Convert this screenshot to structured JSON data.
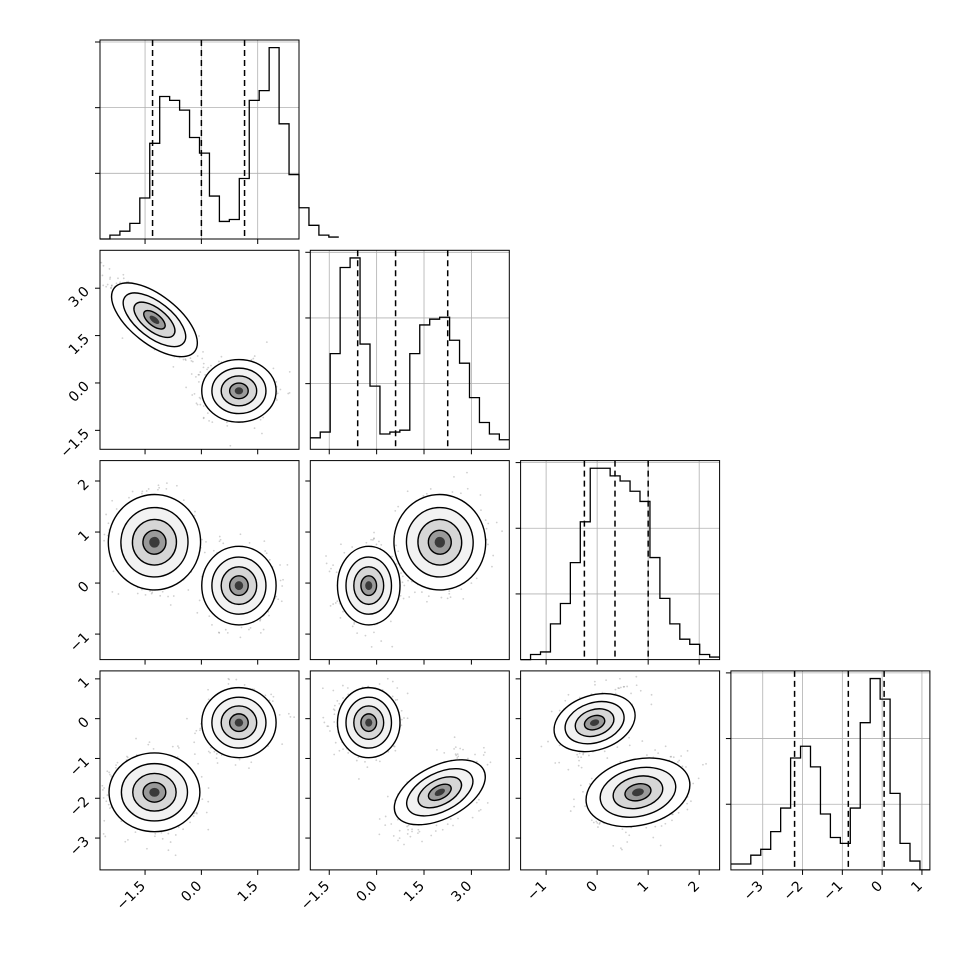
{
  "chart_data": {
    "type": "corner",
    "title": "",
    "n_params": 4,
    "parameter_labels": [
      "",
      "",
      "",
      ""
    ],
    "axis_ranges": [
      [
        -2.7,
        2.6
      ],
      [
        -2.1,
        4.2
      ],
      [
        -1.5,
        2.4
      ],
      [
        -3.8,
        1.2
      ]
    ],
    "ticks": [
      {
        "values": [
          -1.5,
          0.0,
          1.5
        ],
        "labels": [
          "−1.5",
          "0.0",
          "1.5"
        ]
      },
      {
        "values": [
          -1.5,
          0.0,
          1.5,
          3.0
        ],
        "labels": [
          "−1.5",
          "0.0",
          "1.5",
          "3.0"
        ]
      },
      {
        "values": [
          -1,
          0,
          1,
          2
        ],
        "labels": [
          "−1",
          "0",
          "1",
          "2"
        ]
      },
      {
        "values": [
          -3,
          -2,
          -1,
          0,
          1
        ],
        "labels": [
          "−3",
          "−2",
          "−1",
          "0",
          "1"
        ]
      }
    ],
    "histograms": [
      {
        "edges_start": -2.7,
        "bin_width": 0.265,
        "counts": [
          0,
          0.02,
          0.04,
          0.08,
          0.21,
          0.49,
          0.73,
          0.71,
          0.66,
          0.52,
          0.44,
          0.22,
          0.09,
          0.1,
          0.31,
          0.71,
          0.76,
          0.98,
          0.59,
          0.33,
          0.16,
          0.07,
          0.02,
          0.01
        ],
        "quantiles": [
          -1.3,
          0.0,
          1.15
        ]
      },
      {
        "edges_start": -2.1,
        "bin_width": 0.315,
        "counts": [
          0.06,
          0.09,
          0.5,
          0.95,
          1.0,
          0.55,
          0.33,
          0.08,
          0.09,
          0.1,
          0.5,
          0.65,
          0.68,
          0.69,
          0.57,
          0.45,
          0.27,
          0.14,
          0.08,
          0.05
        ],
        "quantiles": [
          -0.6,
          0.6,
          2.25
        ]
      },
      {
        "edges_start": -1.5,
        "bin_width": 0.195,
        "counts": [
          0,
          0.02,
          0.03,
          0.14,
          0.22,
          0.38,
          0.54,
          0.75,
          0.75,
          0.72,
          0.7,
          0.66,
          0.62,
          0.4,
          0.24,
          0.14,
          0.08,
          0.06,
          0.02,
          0.01
        ],
        "quantiles": [
          -0.25,
          0.35,
          1.0
        ]
      },
      {
        "edges_start": -3.8,
        "bin_width": 0.25,
        "counts": [
          0.02,
          0.02,
          0.05,
          0.07,
          0.13,
          0.21,
          0.38,
          0.42,
          0.35,
          0.19,
          0.11,
          0.09,
          0.21,
          0.5,
          0.65,
          0.58,
          0.26,
          0.09,
          0.03,
          0.0
        ],
        "quantiles": [
          -2.2,
          -0.85,
          0.05
        ]
      }
    ],
    "mode_centers": {
      "A": [
        -1.25,
        2.0,
        0.8,
        -1.85
      ],
      "B": [
        1.0,
        -0.25,
        -0.05,
        -0.1
      ]
    },
    "mode_spreads": {
      "A": [
        0.55,
        0.65,
        0.45,
        0.45
      ],
      "B": [
        0.45,
        0.45,
        0.35,
        0.4
      ]
    },
    "mode_correlations": {
      "A": {
        "1-0": -0.85,
        "2-0": -0.1,
        "2-1": 0.1,
        "3-0": 0.0,
        "3-1": 0.6,
        "3-2": 0.3
      },
      "B": {
        "1-0": 0.0,
        "2-0": 0.0,
        "2-1": 0.0,
        "3-0": 0.0,
        "3-1": 0.0,
        "3-2": 0.4
      }
    },
    "sample_points_per_mode": 520
  }
}
